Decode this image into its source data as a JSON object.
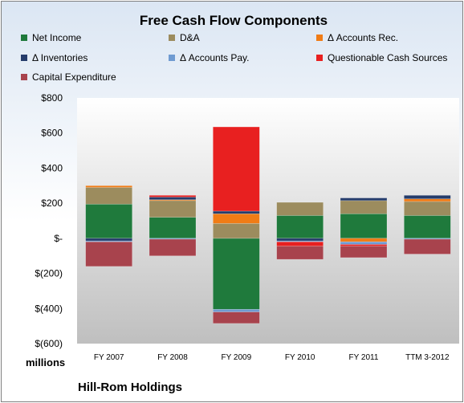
{
  "chart_data": {
    "type": "bar",
    "stacked": true,
    "title": "Free Cash Flow Components",
    "ylabel": "millions",
    "ylim": [
      -600,
      800
    ],
    "yticks": [
      800,
      600,
      400,
      200,
      0,
      -200,
      -400,
      -600
    ],
    "ytick_labels": [
      "$800",
      "$600",
      "$400",
      "$200",
      "$-",
      "$(200)",
      "$(400)",
      "$(600)"
    ],
    "categories": [
      "FY 2007",
      "FY 2008",
      "FY 2009",
      "FY 2010",
      "FY 2011",
      "TTM 3-2012"
    ],
    "legend_position": "top",
    "series": [
      {
        "name": "Net Income",
        "color": "#1f7a3c",
        "values": [
          195,
          120,
          -405,
          130,
          140,
          130
        ]
      },
      {
        "name": "D&A",
        "color": "#9c8c5e",
        "values": [
          95,
          95,
          85,
          75,
          75,
          80
        ]
      },
      {
        "name": "Δ Accounts Rec.",
        "color": "#f07c16",
        "values": [
          10,
          5,
          55,
          0,
          -20,
          15
        ]
      },
      {
        "name": "Δ Inventories",
        "color": "#253c6b",
        "values": [
          -15,
          15,
          15,
          -15,
          15,
          20
        ]
      },
      {
        "name": "Δ Accounts Pay.",
        "color": "#6f9bd1",
        "values": [
          -5,
          -5,
          -15,
          -5,
          -15,
          -5
        ]
      },
      {
        "name": "Questionable Cash Sources",
        "color": "#e82020",
        "values": [
          0,
          10,
          480,
          -25,
          -10,
          0
        ]
      },
      {
        "name": "Capital Expenditure",
        "color": "#a8434d",
        "values": [
          -140,
          -95,
          -65,
          -75,
          -65,
          -85
        ]
      }
    ]
  },
  "footer": {
    "company": "Hill-Rom Holdings",
    "units": "millions"
  }
}
